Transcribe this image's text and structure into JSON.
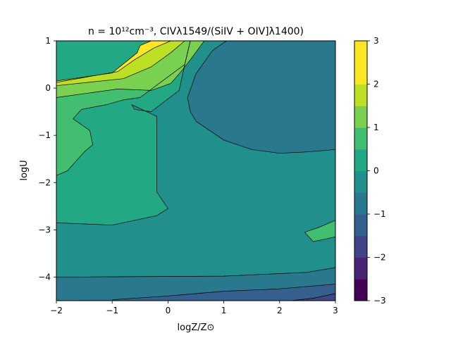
{
  "chart_data": {
    "type": "contour",
    "title": "n = 10¹²cm⁻³, CIVλ1549/(SiIV + OIV]λ1400)",
    "xlabel": "logZ/Z⊙",
    "ylabel": "logU",
    "xlim": [
      -2,
      3
    ],
    "ylim": [
      -4.5,
      1
    ],
    "xticks": [
      -2,
      -1,
      0,
      1,
      2,
      3
    ],
    "yticks": [
      1,
      0,
      -1,
      -2,
      -3,
      -4
    ],
    "x_tick_labels": [
      "−2",
      "−1",
      "0",
      "1",
      "2",
      "3"
    ],
    "y_tick_labels": [
      "1",
      "0",
      "−1",
      "−2",
      "−3",
      "−4"
    ],
    "colorbar": {
      "min": -3,
      "max": 3,
      "step": 0.5,
      "ticks": [
        3,
        2,
        1,
        0,
        -1,
        -2,
        -3
      ],
      "tick_labels": [
        "3",
        "2",
        "1",
        "0",
        "−1",
        "−2",
        "−3"
      ],
      "level_colors": [
        "#440154",
        "#482475",
        "#414487",
        "#355f8d",
        "#2a788e",
        "#21908d",
        "#22a884",
        "#42be71",
        "#7ad151",
        "#bddf26",
        "#fde725",
        "#fde725"
      ]
    },
    "regions": [
      {
        "level": 0.0,
        "color": "#22a884",
        "points": [
          [
            -2,
            -4.5
          ],
          [
            3,
            -4.5
          ],
          [
            3,
            1
          ],
          [
            -2,
            1
          ]
        ]
      },
      {
        "level": -0.5,
        "color": "#21908d",
        "points": [
          [
            -2,
            -2.85
          ],
          [
            -1,
            -2.9
          ],
          [
            -0.2,
            -2.7
          ],
          [
            0,
            -2.55
          ],
          [
            -0.2,
            -2.2
          ],
          [
            -0.2,
            -0.6
          ],
          [
            -0.65,
            -0.35
          ],
          [
            -0.6,
            -0.45
          ],
          [
            -0.3,
            -0.5
          ],
          [
            0.2,
            -0.05
          ],
          [
            0.3,
            0.5
          ],
          [
            0.4,
            1
          ],
          [
            3,
            1
          ],
          [
            3,
            -2.8
          ],
          [
            2.65,
            -3.05
          ],
          [
            2.45,
            -3.05
          ],
          [
            2.6,
            -3.25
          ],
          [
            2.8,
            -3.2
          ],
          [
            3,
            -3.15
          ],
          [
            3,
            -3.8
          ],
          [
            2.5,
            -3.9
          ],
          [
            1,
            -3.98
          ],
          [
            -2,
            -4.0
          ]
        ]
      },
      {
        "level": -1.0,
        "color": "#2a788e",
        "points": [
          [
            1.0,
            1
          ],
          [
            3,
            1
          ],
          [
            3,
            -1.3
          ],
          [
            2.5,
            -1.35
          ],
          [
            2,
            -1.38
          ],
          [
            1.5,
            -1.3
          ],
          [
            1,
            -1.1
          ],
          [
            0.5,
            -0.7
          ],
          [
            0.4,
            -0.5
          ],
          [
            0.35,
            -0.2
          ],
          [
            0.5,
            0.3
          ],
          [
            0.8,
            0.8
          ],
          [
            1.05,
            1
          ]
        ]
      },
      {
        "level": -1.0,
        "color": "#2a788e",
        "points": [
          [
            -2,
            -4.5
          ],
          [
            3,
            -4.5
          ],
          [
            3,
            -3.8
          ],
          [
            2.5,
            -3.9
          ],
          [
            1,
            -3.98
          ],
          [
            -2,
            -4.0
          ]
        ]
      },
      {
        "level": -1.5,
        "color": "#355f8d",
        "points": [
          [
            -2,
            -4.5
          ],
          [
            3,
            -4.5
          ],
          [
            3,
            -4.15
          ],
          [
            2,
            -4.25
          ],
          [
            1,
            -4.3
          ],
          [
            0,
            -4.4
          ],
          [
            -1,
            -4.48
          ]
        ]
      },
      {
        "level": -2.0,
        "color": "#414487",
        "points": [
          [
            2.2,
            -4.5
          ],
          [
            3,
            -4.5
          ],
          [
            3,
            -4.35
          ],
          [
            2.6,
            -4.45
          ]
        ]
      },
      {
        "level": 1.0,
        "color": "#42be71",
        "points": [
          [
            -2,
            -1.85
          ],
          [
            -1.8,
            -1.75
          ],
          [
            -1.5,
            -1.35
          ],
          [
            -1.35,
            -1.2
          ],
          [
            -1.4,
            -0.9
          ],
          [
            -1.7,
            -0.65
          ],
          [
            -1.55,
            -0.45
          ],
          [
            -1.1,
            -0.35
          ],
          [
            -0.8,
            -0.25
          ],
          [
            -0.5,
            -0.2
          ],
          [
            0.3,
            0.5
          ],
          [
            0.4,
            1
          ],
          [
            0.65,
            1
          ],
          [
            0.4,
            0.6
          ],
          [
            0.2,
            0.3
          ],
          [
            0.05,
            0.1
          ],
          [
            -0.3,
            -0.05
          ],
          [
            -0.9,
            -0.02
          ],
          [
            -2,
            -0.2
          ]
        ]
      },
      {
        "level": 1.0,
        "color": "#42be71",
        "points": [
          [
            2.45,
            -3.05
          ],
          [
            2.6,
            -3.25
          ],
          [
            2.8,
            -3.2
          ],
          [
            3,
            -3.15
          ],
          [
            3,
            -2.8
          ],
          [
            2.7,
            -2.95
          ]
        ]
      },
      {
        "level": 1.5,
        "color": "#7ad151",
        "points": [
          [
            -2,
            -0.2
          ],
          [
            -0.9,
            -0.02
          ],
          [
            -0.3,
            -0.05
          ],
          [
            0.05,
            0.1
          ],
          [
            0.2,
            0.3
          ],
          [
            0.4,
            0.6
          ],
          [
            0.65,
            1
          ],
          [
            0.3,
            1
          ],
          [
            0.05,
            0.75
          ],
          [
            -0.3,
            0.45
          ],
          [
            -0.8,
            0.2
          ],
          [
            -2,
            0.05
          ]
        ]
      },
      {
        "level": 2.0,
        "color": "#bddf26",
        "points": [
          [
            -2,
            0.05
          ],
          [
            -0.8,
            0.2
          ],
          [
            -0.3,
            0.45
          ],
          [
            0.05,
            0.75
          ],
          [
            0.3,
            1
          ],
          [
            0.05,
            1
          ],
          [
            -0.25,
            0.85
          ],
          [
            -0.6,
            0.6
          ],
          [
            -0.9,
            0.35
          ],
          [
            -2,
            0.12
          ]
        ]
      },
      {
        "level": 2.5,
        "color": "#fde725",
        "points": [
          [
            -2,
            0.12
          ],
          [
            -0.9,
            0.35
          ],
          [
            -0.6,
            0.6
          ],
          [
            -0.25,
            0.85
          ],
          [
            0.05,
            1
          ],
          [
            -0.3,
            1
          ],
          [
            -0.5,
            0.9
          ],
          [
            -0.55,
            0.75
          ],
          [
            -1.0,
            0.32
          ],
          [
            -2,
            0.15
          ]
        ]
      }
    ],
    "contour_lines": [
      [
        [
          -2,
          -2.85
        ],
        [
          -1,
          -2.9
        ],
        [
          -0.2,
          -2.7
        ],
        [
          0,
          -2.55
        ],
        [
          -0.2,
          -2.2
        ],
        [
          -0.2,
          -0.6
        ],
        [
          -0.65,
          -0.35
        ],
        [
          -0.6,
          -0.45
        ],
        [
          -0.3,
          -0.5
        ],
        [
          0.2,
          -0.05
        ],
        [
          0.3,
          0.5
        ],
        [
          0.4,
          1
        ]
      ],
      [
        [
          -2,
          -1.85
        ],
        [
          -1.8,
          -1.75
        ],
        [
          -1.5,
          -1.35
        ],
        [
          -1.35,
          -1.2
        ],
        [
          -1.4,
          -0.9
        ],
        [
          -1.7,
          -0.65
        ],
        [
          -1.55,
          -0.45
        ],
        [
          -1.1,
          -0.35
        ],
        [
          -0.8,
          -0.25
        ],
        [
          -0.5,
          -0.2
        ],
        [
          0.3,
          0.5
        ],
        [
          0.4,
          1
        ]
      ],
      [
        [
          1.05,
          1
        ],
        [
          0.8,
          0.8
        ],
        [
          0.5,
          0.3
        ],
        [
          0.35,
          -0.2
        ],
        [
          0.4,
          -0.5
        ],
        [
          0.5,
          -0.7
        ],
        [
          1,
          -1.1
        ],
        [
          1.5,
          -1.3
        ],
        [
          2,
          -1.38
        ],
        [
          2.5,
          -1.35
        ],
        [
          3,
          -1.3
        ]
      ],
      [
        [
          -2,
          -0.2
        ],
        [
          -0.9,
          -0.02
        ],
        [
          -0.3,
          -0.05
        ],
        [
          0.05,
          0.1
        ],
        [
          0.2,
          0.3
        ],
        [
          0.4,
          0.6
        ],
        [
          0.65,
          1
        ]
      ],
      [
        [
          -2,
          0.05
        ],
        [
          -0.8,
          0.2
        ],
        [
          -0.3,
          0.45
        ],
        [
          0.05,
          0.75
        ],
        [
          0.3,
          1
        ]
      ],
      [
        [
          -2,
          0.12
        ],
        [
          -0.9,
          0.35
        ],
        [
          -0.6,
          0.6
        ],
        [
          -0.25,
          0.85
        ],
        [
          0.05,
          1
        ]
      ],
      [
        [
          -2,
          0.15
        ],
        [
          -1.0,
          0.32
        ],
        [
          -0.55,
          0.75
        ],
        [
          -0.5,
          0.9
        ],
        [
          -0.3,
          1
        ]
      ],
      [
        [
          3,
          -2.8
        ],
        [
          2.7,
          -2.95
        ],
        [
          2.45,
          -3.05
        ],
        [
          2.6,
          -3.25
        ],
        [
          2.8,
          -3.2
        ],
        [
          3,
          -3.15
        ]
      ],
      [
        [
          -2,
          -4.0
        ],
        [
          1,
          -3.98
        ],
        [
          2.5,
          -3.9
        ],
        [
          3,
          -3.8
        ]
      ],
      [
        [
          -1,
          -4.48
        ],
        [
          0,
          -4.4
        ],
        [
          1,
          -4.3
        ],
        [
          2,
          -4.25
        ],
        [
          3,
          -4.15
        ]
      ],
      [
        [
          2.2,
          -4.5
        ],
        [
          2.6,
          -4.45
        ],
        [
          3,
          -4.35
        ]
      ]
    ]
  }
}
